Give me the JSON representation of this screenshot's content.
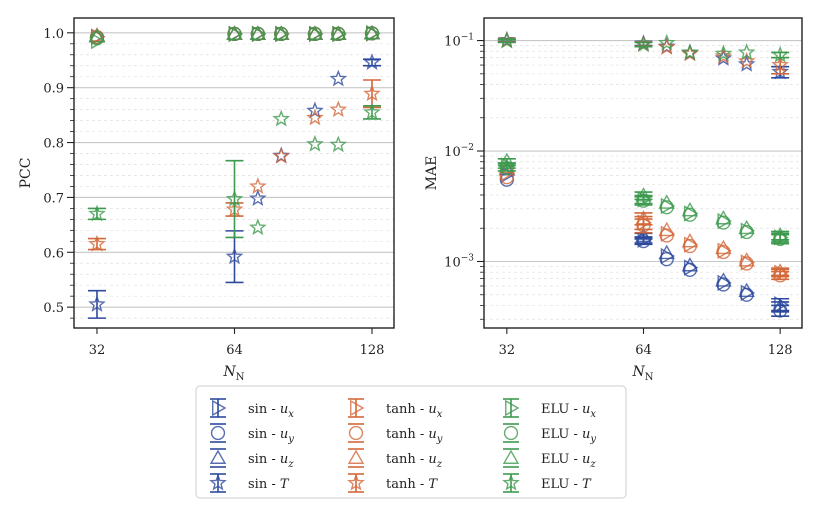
{
  "chart_data": [
    {
      "type": "scatter",
      "panel": "left",
      "xlabel": "N_N",
      "ylabel": "PCC",
      "xscale": "log2",
      "xticks": [
        32,
        64,
        128
      ],
      "xtick_labels": [
        "32",
        "64",
        "128"
      ],
      "xlim": [
        28.5,
        143
      ],
      "ylim": [
        0.462,
        1.027
      ],
      "yticks": [
        0.5,
        0.6,
        0.7,
        0.8,
        0.9,
        1.0
      ],
      "ytick_labels": [
        "0.5",
        "0.6",
        "0.7",
        "0.8",
        "0.9",
        "1.0"
      ],
      "grid": true,
      "series": [
        {
          "name": "sin - u_x",
          "activation": "sin",
          "variable": "u_x",
          "x": [
            32,
            64,
            72,
            81,
            96,
            108,
            128
          ],
          "y": [
            0.993,
            0.998,
            0.998,
            0.998,
            0.998,
            0.998,
            0.999
          ]
        },
        {
          "name": "sin - u_y",
          "activation": "sin",
          "variable": "u_y",
          "x": [
            32,
            64,
            72,
            81,
            96,
            108,
            128
          ],
          "y": [
            0.992,
            0.998,
            0.998,
            0.998,
            0.998,
            0.998,
            0.999
          ]
        },
        {
          "name": "sin - u_z",
          "activation": "sin",
          "variable": "u_z",
          "x": [
            32,
            64,
            72,
            81,
            96,
            108,
            128
          ],
          "y": [
            0.994,
            0.998,
            0.998,
            0.998,
            0.998,
            0.998,
            0.999
          ]
        },
        {
          "name": "sin - T",
          "activation": "sin",
          "variable": "T",
          "x": [
            32,
            64,
            72,
            81,
            96,
            108,
            128
          ],
          "y": [
            0.505,
            0.592,
            0.698,
            0.776,
            0.858,
            0.916,
            0.946
          ],
          "err": [
            0.025,
            0.047,
            0,
            0,
            0,
            0,
            0.006
          ]
        },
        {
          "name": "tanh - u_x",
          "activation": "tanh",
          "variable": "u_x",
          "x": [
            32,
            64,
            72,
            81,
            96,
            108,
            128
          ],
          "y": [
            0.993,
            0.998,
            0.998,
            0.998,
            0.998,
            0.998,
            0.999
          ]
        },
        {
          "name": "tanh - u_y",
          "activation": "tanh",
          "variable": "u_y",
          "x": [
            32,
            64,
            72,
            81,
            96,
            108,
            128
          ],
          "y": [
            0.992,
            0.998,
            0.998,
            0.998,
            0.998,
            0.998,
            0.999
          ]
        },
        {
          "name": "tanh - u_z",
          "activation": "tanh",
          "variable": "u_z",
          "x": [
            32,
            64,
            72,
            81,
            96,
            108,
            128
          ],
          "y": [
            0.995,
            0.998,
            0.998,
            0.998,
            0.998,
            0.998,
            0.999
          ]
        },
        {
          "name": "tanh - T",
          "activation": "tanh",
          "variable": "T",
          "x": [
            32,
            64,
            72,
            81,
            96,
            108,
            128
          ],
          "y": [
            0.615,
            0.678,
            0.72,
            0.775,
            0.845,
            0.86,
            0.889
          ],
          "err": [
            0.01,
            0.012,
            0,
            0,
            0,
            0,
            0.025
          ]
        },
        {
          "name": "ELU - u_x",
          "activation": "ELU",
          "variable": "u_x",
          "x": [
            32,
            64,
            72,
            81,
            96,
            108,
            128
          ],
          "y": [
            0.985,
            0.998,
            0.998,
            0.998,
            0.998,
            0.998,
            0.999
          ]
        },
        {
          "name": "ELU - u_y",
          "activation": "ELU",
          "variable": "u_y",
          "x": [
            32,
            64,
            72,
            81,
            96,
            108,
            128
          ],
          "y": [
            0.99,
            0.998,
            0.998,
            0.998,
            0.998,
            0.998,
            0.999
          ]
        },
        {
          "name": "ELU - u_z",
          "activation": "ELU",
          "variable": "u_z",
          "x": [
            32,
            64,
            72,
            81,
            96,
            108,
            128
          ],
          "y": [
            0.993,
            0.998,
            0.998,
            0.998,
            0.998,
            0.998,
            0.999
          ]
        },
        {
          "name": "ELU - T",
          "activation": "ELU",
          "variable": "T",
          "x": [
            32,
            64,
            72,
            81,
            96,
            108,
            128
          ],
          "y": [
            0.67,
            0.697,
            0.645,
            0.843,
            0.797,
            0.796,
            0.855
          ],
          "err": [
            0.01,
            0.07,
            0,
            0,
            0,
            0,
            0.012
          ]
        }
      ]
    },
    {
      "type": "scatter",
      "panel": "right",
      "xlabel": "N_N",
      "ylabel": "MAE",
      "xscale": "log2",
      "yscale": "log10",
      "xticks": [
        32,
        64,
        128
      ],
      "xtick_labels": [
        "32",
        "64",
        "128"
      ],
      "xlim": [
        28.5,
        143
      ],
      "ylim": [
        0.00025,
        0.16
      ],
      "yticks": [
        0.001,
        0.01,
        0.1
      ],
      "ytick_labels": [
        "10",
        "10",
        "10"
      ],
      "ytick_exponents": [
        "−3",
        "−2",
        "−1"
      ],
      "grid": true,
      "series": [
        {
          "name": "sin - u_x",
          "activation": "sin",
          "variable": "u_x",
          "x": [
            32,
            64,
            72,
            81,
            96,
            108,
            128
          ],
          "y": [
            0.0061,
            0.00157,
            0.00112,
            0.00088,
            0.00064,
            0.00052,
            0.00041
          ],
          "err": [
            0,
            0.0001,
            0,
            0,
            0,
            0,
            5e-05
          ]
        },
        {
          "name": "sin - u_y",
          "activation": "sin",
          "variable": "u_y",
          "x": [
            32,
            64,
            72,
            81,
            96,
            108,
            128
          ],
          "y": [
            0.0055,
            0.00153,
            0.00105,
            0.00084,
            0.00062,
            0.0005,
            0.00036
          ],
          "err": [
            0,
            0.0001,
            0,
            0,
            0,
            0,
            4e-05
          ]
        },
        {
          "name": "sin - u_z",
          "activation": "sin",
          "variable": "u_z",
          "x": [
            32,
            64,
            72,
            81,
            96,
            108,
            128
          ],
          "y": [
            0.0068,
            0.0017,
            0.00119,
            0.00092,
            0.00067,
            0.00054,
            0.00039
          ],
          "err": [
            0,
            0.0001,
            0,
            0,
            0,
            0,
            4e-05
          ]
        },
        {
          "name": "sin - T",
          "activation": "sin",
          "variable": "T",
          "x": [
            32,
            64,
            72,
            81,
            96,
            108,
            128
          ],
          "y": [
            0.101,
            0.094,
            0.088,
            0.077,
            0.069,
            0.061,
            0.052
          ],
          "err": [
            0.003,
            0.004,
            0,
            0,
            0,
            0,
            0.006
          ]
        },
        {
          "name": "tanh - u_x",
          "activation": "tanh",
          "variable": "u_x",
          "x": [
            32,
            64,
            72,
            81,
            96,
            108,
            128
          ],
          "y": [
            0.0063,
            0.00225,
            0.00178,
            0.00142,
            0.00125,
            0.00098,
            0.00079
          ],
          "err": [
            0,
            0.0003,
            0,
            0,
            0,
            0,
            6e-05
          ]
        },
        {
          "name": "tanh - u_y",
          "activation": "tanh",
          "variable": "u_y",
          "x": [
            32,
            64,
            72,
            81,
            96,
            108,
            128
          ],
          "y": [
            0.0058,
            0.00212,
            0.00172,
            0.00138,
            0.00122,
            0.00096,
            0.00075
          ],
          "err": [
            0,
            0.0003,
            0,
            0,
            0,
            0,
            6e-05
          ]
        },
        {
          "name": "tanh - u_z",
          "activation": "tanh",
          "variable": "u_z",
          "x": [
            32,
            64,
            72,
            81,
            96,
            108,
            128
          ],
          "y": [
            0.0071,
            0.00245,
            0.00192,
            0.00152,
            0.00132,
            0.00102,
            0.00081
          ],
          "err": [
            0,
            0.0003,
            0,
            0,
            0,
            0,
            6e-05
          ]
        },
        {
          "name": "tanh - T",
          "activation": "tanh",
          "variable": "T",
          "x": [
            32,
            64,
            72,
            81,
            96,
            108,
            128
          ],
          "y": [
            0.1,
            0.093,
            0.087,
            0.076,
            0.072,
            0.065,
            0.06
          ],
          "err": [
            0.003,
            0.004,
            0,
            0,
            0,
            0,
            0.01
          ]
        },
        {
          "name": "ELU - u_x",
          "activation": "ELU",
          "variable": "u_x",
          "x": [
            32,
            64,
            72,
            81,
            96,
            108,
            128
          ],
          "y": [
            0.0074,
            0.00365,
            0.00318,
            0.00272,
            0.00232,
            0.0019,
            0.00165
          ],
          "err": [
            0.0004,
            0.0003,
            0,
            0,
            0,
            0,
            0.00015
          ]
        },
        {
          "name": "ELU - u_y",
          "activation": "ELU",
          "variable": "u_y",
          "x": [
            32,
            64,
            72,
            81,
            96,
            108,
            128
          ],
          "y": [
            0.007,
            0.00355,
            0.0031,
            0.00265,
            0.00225,
            0.00185,
            0.0016
          ],
          "err": [
            0.0004,
            0.0003,
            0,
            0,
            0,
            0,
            0.00015
          ]
        },
        {
          "name": "ELU - u_z",
          "activation": "ELU",
          "variable": "u_z",
          "x": [
            32,
            64,
            72,
            81,
            96,
            108,
            128
          ],
          "y": [
            0.0081,
            0.00395,
            0.0034,
            0.0029,
            0.00245,
            0.002,
            0.00172
          ],
          "err": [
            0.0004,
            0.0003,
            0,
            0,
            0,
            0,
            0.00015
          ]
        },
        {
          "name": "ELU - T",
          "activation": "ELU",
          "variable": "T",
          "x": [
            32,
            64,
            72,
            81,
            96,
            108,
            128
          ],
          "y": [
            0.099,
            0.092,
            0.095,
            0.078,
            0.076,
            0.078,
            0.074
          ],
          "err": [
            0.003,
            0.004,
            0,
            0,
            0,
            0,
            0.004
          ]
        }
      ]
    }
  ],
  "styles": {
    "colors": {
      "sin": "#2e4a9e",
      "tanh": "#d3683a",
      "ELU": "#3d9a4e"
    },
    "markers": {
      "u_x": "triangle-right",
      "u_y": "circle",
      "u_z": "triangle-up",
      "T": "star"
    }
  },
  "axis_label_parts": {
    "main": "N",
    "subscript": "N"
  },
  "legend": {
    "placement": "bottom-center",
    "entries": [
      {
        "activation": "sin",
        "variable": "u_x",
        "prefix": "sin - ",
        "var_base": "u",
        "var_sub": "x"
      },
      {
        "activation": "sin",
        "variable": "u_y",
        "prefix": "sin - ",
        "var_base": "u",
        "var_sub": "y"
      },
      {
        "activation": "sin",
        "variable": "u_z",
        "prefix": "sin - ",
        "var_base": "u",
        "var_sub": "z"
      },
      {
        "activation": "sin",
        "variable": "T",
        "prefix": "sin - ",
        "var_base": "T",
        "var_sub": ""
      },
      {
        "activation": "tanh",
        "variable": "u_x",
        "prefix": "tanh - ",
        "var_base": "u",
        "var_sub": "x"
      },
      {
        "activation": "tanh",
        "variable": "u_y",
        "prefix": "tanh - ",
        "var_base": "u",
        "var_sub": "y"
      },
      {
        "activation": "tanh",
        "variable": "u_z",
        "prefix": "tanh - ",
        "var_base": "u",
        "var_sub": "z"
      },
      {
        "activation": "tanh",
        "variable": "T",
        "prefix": "tanh - ",
        "var_base": "T",
        "var_sub": ""
      },
      {
        "activation": "ELU",
        "variable": "u_x",
        "prefix": "ELU - ",
        "var_base": "u",
        "var_sub": "x"
      },
      {
        "activation": "ELU",
        "variable": "u_y",
        "prefix": "ELU - ",
        "var_base": "u",
        "var_sub": "y"
      },
      {
        "activation": "ELU",
        "variable": "u_z",
        "prefix": "ELU - ",
        "var_base": "u",
        "var_sub": "z"
      },
      {
        "activation": "ELU",
        "variable": "T",
        "prefix": "ELU - ",
        "var_base": "T",
        "var_sub": ""
      }
    ]
  }
}
